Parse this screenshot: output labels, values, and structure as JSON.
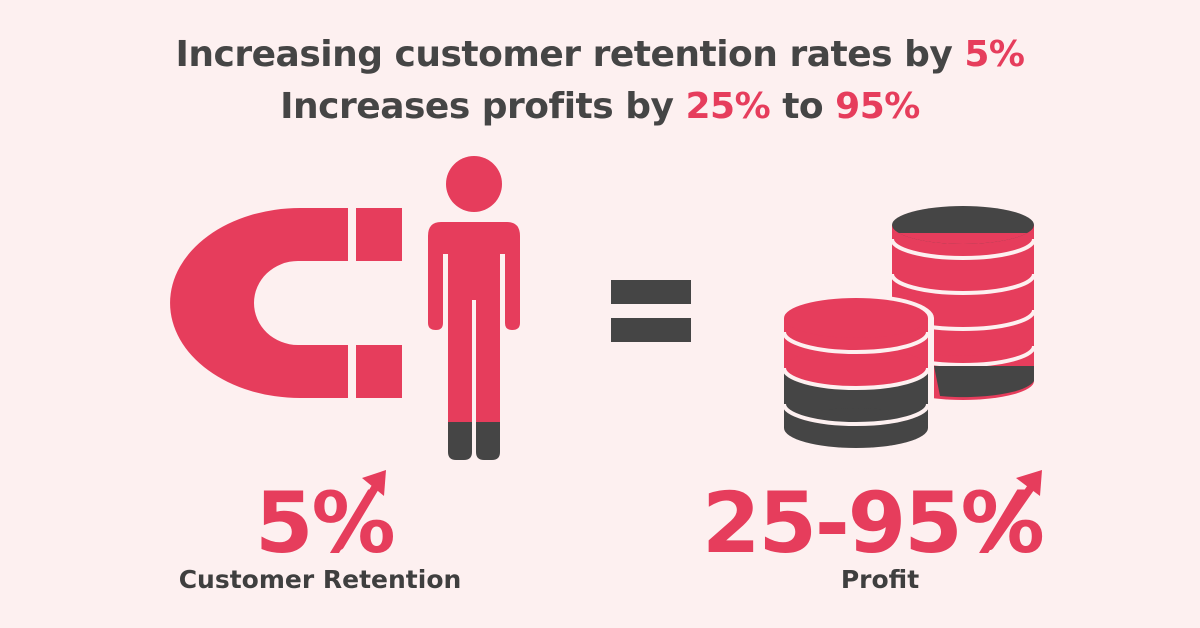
{
  "headline": {
    "line1_text": "Increasing customer retention rates by ",
    "line1_highlight": "5%",
    "line2_text_a": "Increases profits by ",
    "line2_highlight_a": "25%",
    "line2_text_b": " to ",
    "line2_highlight_b": "95%"
  },
  "retention": {
    "value": "5%",
    "caption": "Customer Retention"
  },
  "profit": {
    "value": "25-95%",
    "caption": "Profit"
  },
  "icons": [
    "magnet-icon",
    "person-icon",
    "equals-icon",
    "coin-stack-icon",
    "arrow-up-icon"
  ],
  "colors": {
    "accent": "#e63d5c",
    "dark": "#454545",
    "background": "#fdf0f0"
  }
}
